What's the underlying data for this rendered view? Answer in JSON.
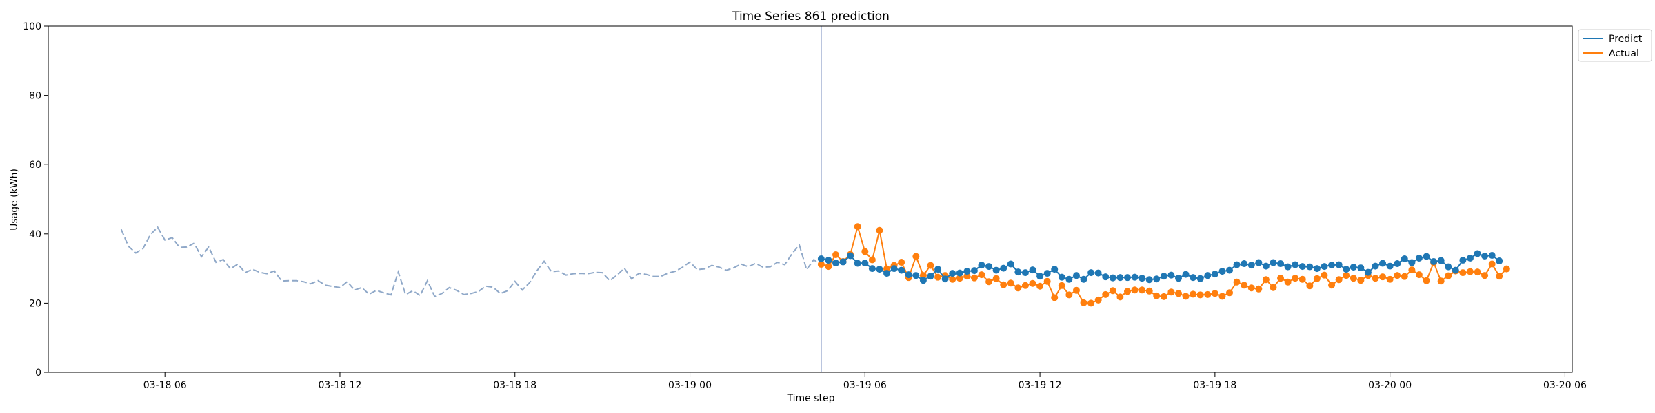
{
  "chart_data": {
    "type": "line",
    "title": "Time Series 861 prediction",
    "xlabel": "Time step",
    "ylabel": "Usage (kWh)",
    "ylim": [
      0,
      100
    ],
    "yticks": [
      0,
      20,
      40,
      60,
      80,
      100
    ],
    "xlim": [
      "2025-03-18T02:00",
      "2025-03-20T06:15"
    ],
    "xticks": [
      {
        "t": "2025-03-18T06:00",
        "label": "03-18 06"
      },
      {
        "t": "2025-03-18T12:00",
        "label": "03-18 12"
      },
      {
        "t": "2025-03-18T18:00",
        "label": "03-18 18"
      },
      {
        "t": "2025-03-19T00:00",
        "label": "03-19 00"
      },
      {
        "t": "2025-03-19T06:00",
        "label": "03-19 06"
      },
      {
        "t": "2025-03-19T12:00",
        "label": "03-19 12"
      },
      {
        "t": "2025-03-19T18:00",
        "label": "03-19 18"
      },
      {
        "t": "2025-03-20T00:00",
        "label": "03-20 00"
      },
      {
        "t": "2025-03-20T06:00",
        "label": "03-20 06"
      }
    ],
    "interval_minutes": 15,
    "legend_position": "top-right, outside plot",
    "grid": false,
    "colors": {
      "predict": "#1f77b4",
      "actual": "#ff7f0e",
      "history": "#8fa8c8",
      "divider": "#8fa0c8"
    },
    "history": {
      "start": "2025-03-18T04:30",
      "style": "dashed",
      "values": [
        41.3,
        36.4,
        34.5,
        35.8,
        39.8,
        41.9,
        38.2,
        38.9,
        36.1,
        36.2,
        37.3,
        33.4,
        36.2,
        31.8,
        32.6,
        29.9,
        31.3,
        28.8,
        29.8,
        28.9,
        28.5,
        29.3,
        26.4,
        26.5,
        26.5,
        26.2,
        25.6,
        26.5,
        25.2,
        24.8,
        24.5,
        26.2,
        23.8,
        24.5,
        22.6,
        23.7,
        23.0,
        22.4,
        29.0,
        22.5,
        23.6,
        22.2,
        26.5,
        21.9,
        22.8,
        24.5,
        23.7,
        22.5,
        22.8,
        23.4,
        24.9,
        24.6,
        22.8,
        23.6,
        26.3,
        23.8,
        25.9,
        29.3,
        32.1,
        29.1,
        29.3,
        28.1,
        28.5,
        28.6,
        28.5,
        28.9,
        28.8,
        26.5,
        28.1,
        30.1,
        27.0,
        28.6,
        28.3,
        27.7,
        27.7,
        28.7,
        29.2,
        30.4,
        31.9,
        29.7,
        29.9,
        30.9,
        30.4,
        29.5,
        30.2,
        31.3,
        30.5,
        31.5,
        30.4,
        30.5,
        31.8,
        31.1,
        34.3,
        36.8,
        29.7,
        32.6,
        30.5
      ]
    },
    "series": [
      {
        "name": "Predict",
        "start": "2025-03-19T04:30",
        "values": [
          32.8,
          32.4,
          31.6,
          31.9,
          33.7,
          31.5,
          31.6,
          30.0,
          29.8,
          28.6,
          30.0,
          29.5,
          28.2,
          28.0,
          26.6,
          27.8,
          29.8,
          27.0,
          28.6,
          28.7,
          29.2,
          29.4,
          31.0,
          30.6,
          29.5,
          30.1,
          31.3,
          29.0,
          28.8,
          29.6,
          27.8,
          28.6,
          29.8,
          27.5,
          26.9,
          28.0,
          26.9,
          28.8,
          28.7,
          27.6,
          27.3,
          27.4,
          27.4,
          27.5,
          27.2,
          26.8,
          27.0,
          27.8,
          28.1,
          27.2,
          28.3,
          27.4,
          27.1,
          28.0,
          28.4,
          29.2,
          29.5,
          31.1,
          31.4,
          31.0,
          31.7,
          30.7,
          31.7,
          31.4,
          30.5,
          31.1,
          30.6,
          30.5,
          30.0,
          30.6,
          31.0,
          31.1,
          29.8,
          30.4,
          30.2,
          28.9,
          30.7,
          31.5,
          30.7,
          31.4,
          32.8,
          31.7,
          33.0,
          33.5,
          32.0,
          32.3,
          30.5,
          29.5,
          32.4,
          33.0,
          34.3,
          33.6,
          33.8,
          32.2
        ]
      },
      {
        "name": "Actual",
        "start": "2025-03-19T04:30",
        "values": [
          31.2,
          30.6,
          34.0,
          32.0,
          34.1,
          42.1,
          34.9,
          32.5,
          41.0,
          29.9,
          30.9,
          31.8,
          27.4,
          33.5,
          28.0,
          30.9,
          27.5,
          28.0,
          26.9,
          27.2,
          27.8,
          27.3,
          28.2,
          26.2,
          27.1,
          25.3,
          25.8,
          24.4,
          25.1,
          25.7,
          24.9,
          26.3,
          21.6,
          25.1,
          22.4,
          23.7,
          20.1,
          20.0,
          20.9,
          22.5,
          23.6,
          21.8,
          23.4,
          23.8,
          23.8,
          23.5,
          22.1,
          21.9,
          23.2,
          22.8,
          22.0,
          22.6,
          22.4,
          22.5,
          22.8,
          22.0,
          23.0,
          26.1,
          25.2,
          24.4,
          24.1,
          26.8,
          24.5,
          27.2,
          26.1,
          27.2,
          26.9,
          25.0,
          27.1,
          28.1,
          25.2,
          26.8,
          28.0,
          27.2,
          26.6,
          28.0,
          27.2,
          27.6,
          26.9,
          28.0,
          27.7,
          29.6,
          28.2,
          26.5,
          31.7,
          26.4,
          27.9,
          29.3,
          28.8,
          29.1,
          29.0,
          28.0,
          31.3,
          27.8,
          29.9
        ]
      }
    ]
  }
}
